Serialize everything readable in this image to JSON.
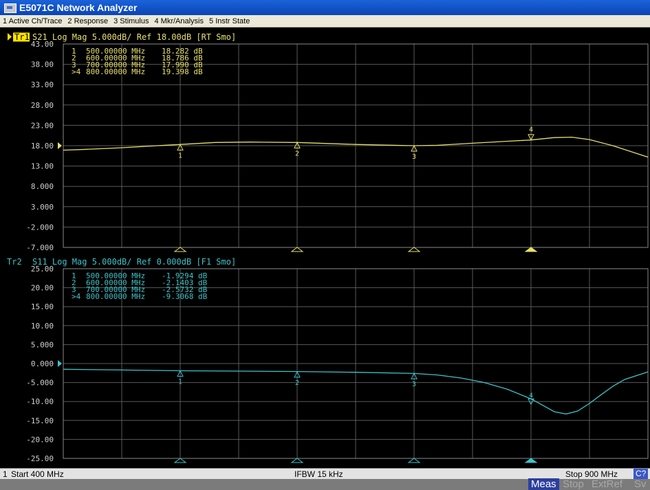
{
  "window": {
    "title": "E5071C Network Analyzer"
  },
  "menu": [
    "1 Active Ch/Trace",
    "2 Response",
    "3 Stimulus",
    "4 Mkr/Analysis",
    "5 Instr State"
  ],
  "channels": [
    {
      "trace_id": "Tr1",
      "header": "S21 Log Mag 5.000dB/ Ref 18.00dB [RT Smo]",
      "color": "#e8e06a",
      "active": true,
      "y_ticks": [
        "43.00",
        "38.00",
        "33.00",
        "28.00",
        "23.00",
        "18.00",
        "13.00",
        "8.000",
        "3.000",
        "-2.000",
        "-7.000"
      ],
      "markers": [
        {
          "id": "1",
          "freq": "500.00000 MHz",
          "value": "18.282 dB"
        },
        {
          "id": "2",
          "freq": "600.00000 MHz",
          "value": "18.786 dB"
        },
        {
          "id": "3",
          "freq": "700.00000 MHz",
          "value": "17.990 dB"
        },
        {
          "id": ">4",
          "freq": "800.00000 MHz",
          "value": "19.398 dB"
        }
      ]
    },
    {
      "trace_id": "Tr2",
      "header": "S11 Log Mag 5.000dB/ Ref 0.000dB [F1 Smo]",
      "color": "#3ec3c9",
      "active": false,
      "y_ticks": [
        "25.00",
        "20.00",
        "15.00",
        "10.00",
        "5.000",
        "0.000",
        "-5.000",
        "-10.00",
        "-15.00",
        "-20.00",
        "-25.00"
      ],
      "markers": [
        {
          "id": "1",
          "freq": "500.00000 MHz",
          "value": "-1.9294 dB"
        },
        {
          "id": "2",
          "freq": "600.00000 MHz",
          "value": "-2.1403 dB"
        },
        {
          "id": "3",
          "freq": "700.00000 MHz",
          "value": "-2.5732 dB"
        },
        {
          "id": ">4",
          "freq": "800.00000 MHz",
          "value": "-9.3068 dB"
        }
      ]
    }
  ],
  "chart_data": [
    {
      "type": "line",
      "title": "S21 Log Mag 5.000dB/ Ref 18.00dB [RT Smo]",
      "xlabel": "",
      "ylabel": "",
      "xlim": [
        400,
        900
      ],
      "ylim": [
        -7,
        43
      ],
      "grid": true,
      "series": [
        {
          "x": [
            400,
            420,
            450,
            480,
            500,
            530,
            560,
            600,
            650,
            700,
            720,
            750,
            780,
            800,
            820,
            835,
            850,
            870,
            900
          ],
          "values": [
            16.9,
            17.1,
            17.5,
            18.0,
            18.3,
            18.8,
            18.9,
            18.8,
            18.3,
            18.0,
            18.1,
            18.6,
            19.1,
            19.4,
            20.0,
            20.1,
            19.5,
            18.0,
            15.2
          ]
        }
      ],
      "markers": [
        {
          "label": "1",
          "x": 500,
          "y": 18.282
        },
        {
          "label": "2",
          "x": 600,
          "y": 18.786
        },
        {
          "label": "3",
          "x": 700,
          "y": 17.99
        },
        {
          "label": "4",
          "x": 800,
          "y": 19.398
        }
      ]
    },
    {
      "type": "line",
      "title": "S11 Log Mag 5.000dB/ Ref 0.000dB [F1 Smo]",
      "xlabel": "",
      "ylabel": "",
      "xlim": [
        400,
        900
      ],
      "ylim": [
        -25,
        25
      ],
      "grid": true,
      "series": [
        {
          "x": [
            400,
            450,
            500,
            550,
            600,
            650,
            700,
            720,
            740,
            760,
            780,
            800,
            810,
            820,
            830,
            840,
            850,
            860,
            870,
            880,
            900
          ],
          "values": [
            -1.5,
            -1.7,
            -1.9,
            -2.0,
            -2.1,
            -2.3,
            -2.6,
            -3.0,
            -3.8,
            -5.0,
            -6.8,
            -9.3,
            -11.0,
            -12.7,
            -13.3,
            -12.5,
            -10.5,
            -8.2,
            -6.0,
            -4.2,
            -2.2
          ]
        }
      ],
      "markers": [
        {
          "label": "1",
          "x": 500,
          "y": -1.9294
        },
        {
          "label": "2",
          "x": 600,
          "y": -2.1403
        },
        {
          "label": "3",
          "x": 700,
          "y": -2.5732
        },
        {
          "label": "4",
          "x": 800,
          "y": -9.3068
        }
      ]
    }
  ],
  "status": {
    "channel": "1",
    "start": "Start 400 MHz",
    "ifbw": "IFBW 15 kHz",
    "stop": "Stop 900 MHz",
    "cal": "C?"
  },
  "softkeys": [
    "Meas",
    "Stop",
    "ExtRef",
    "Sv"
  ]
}
